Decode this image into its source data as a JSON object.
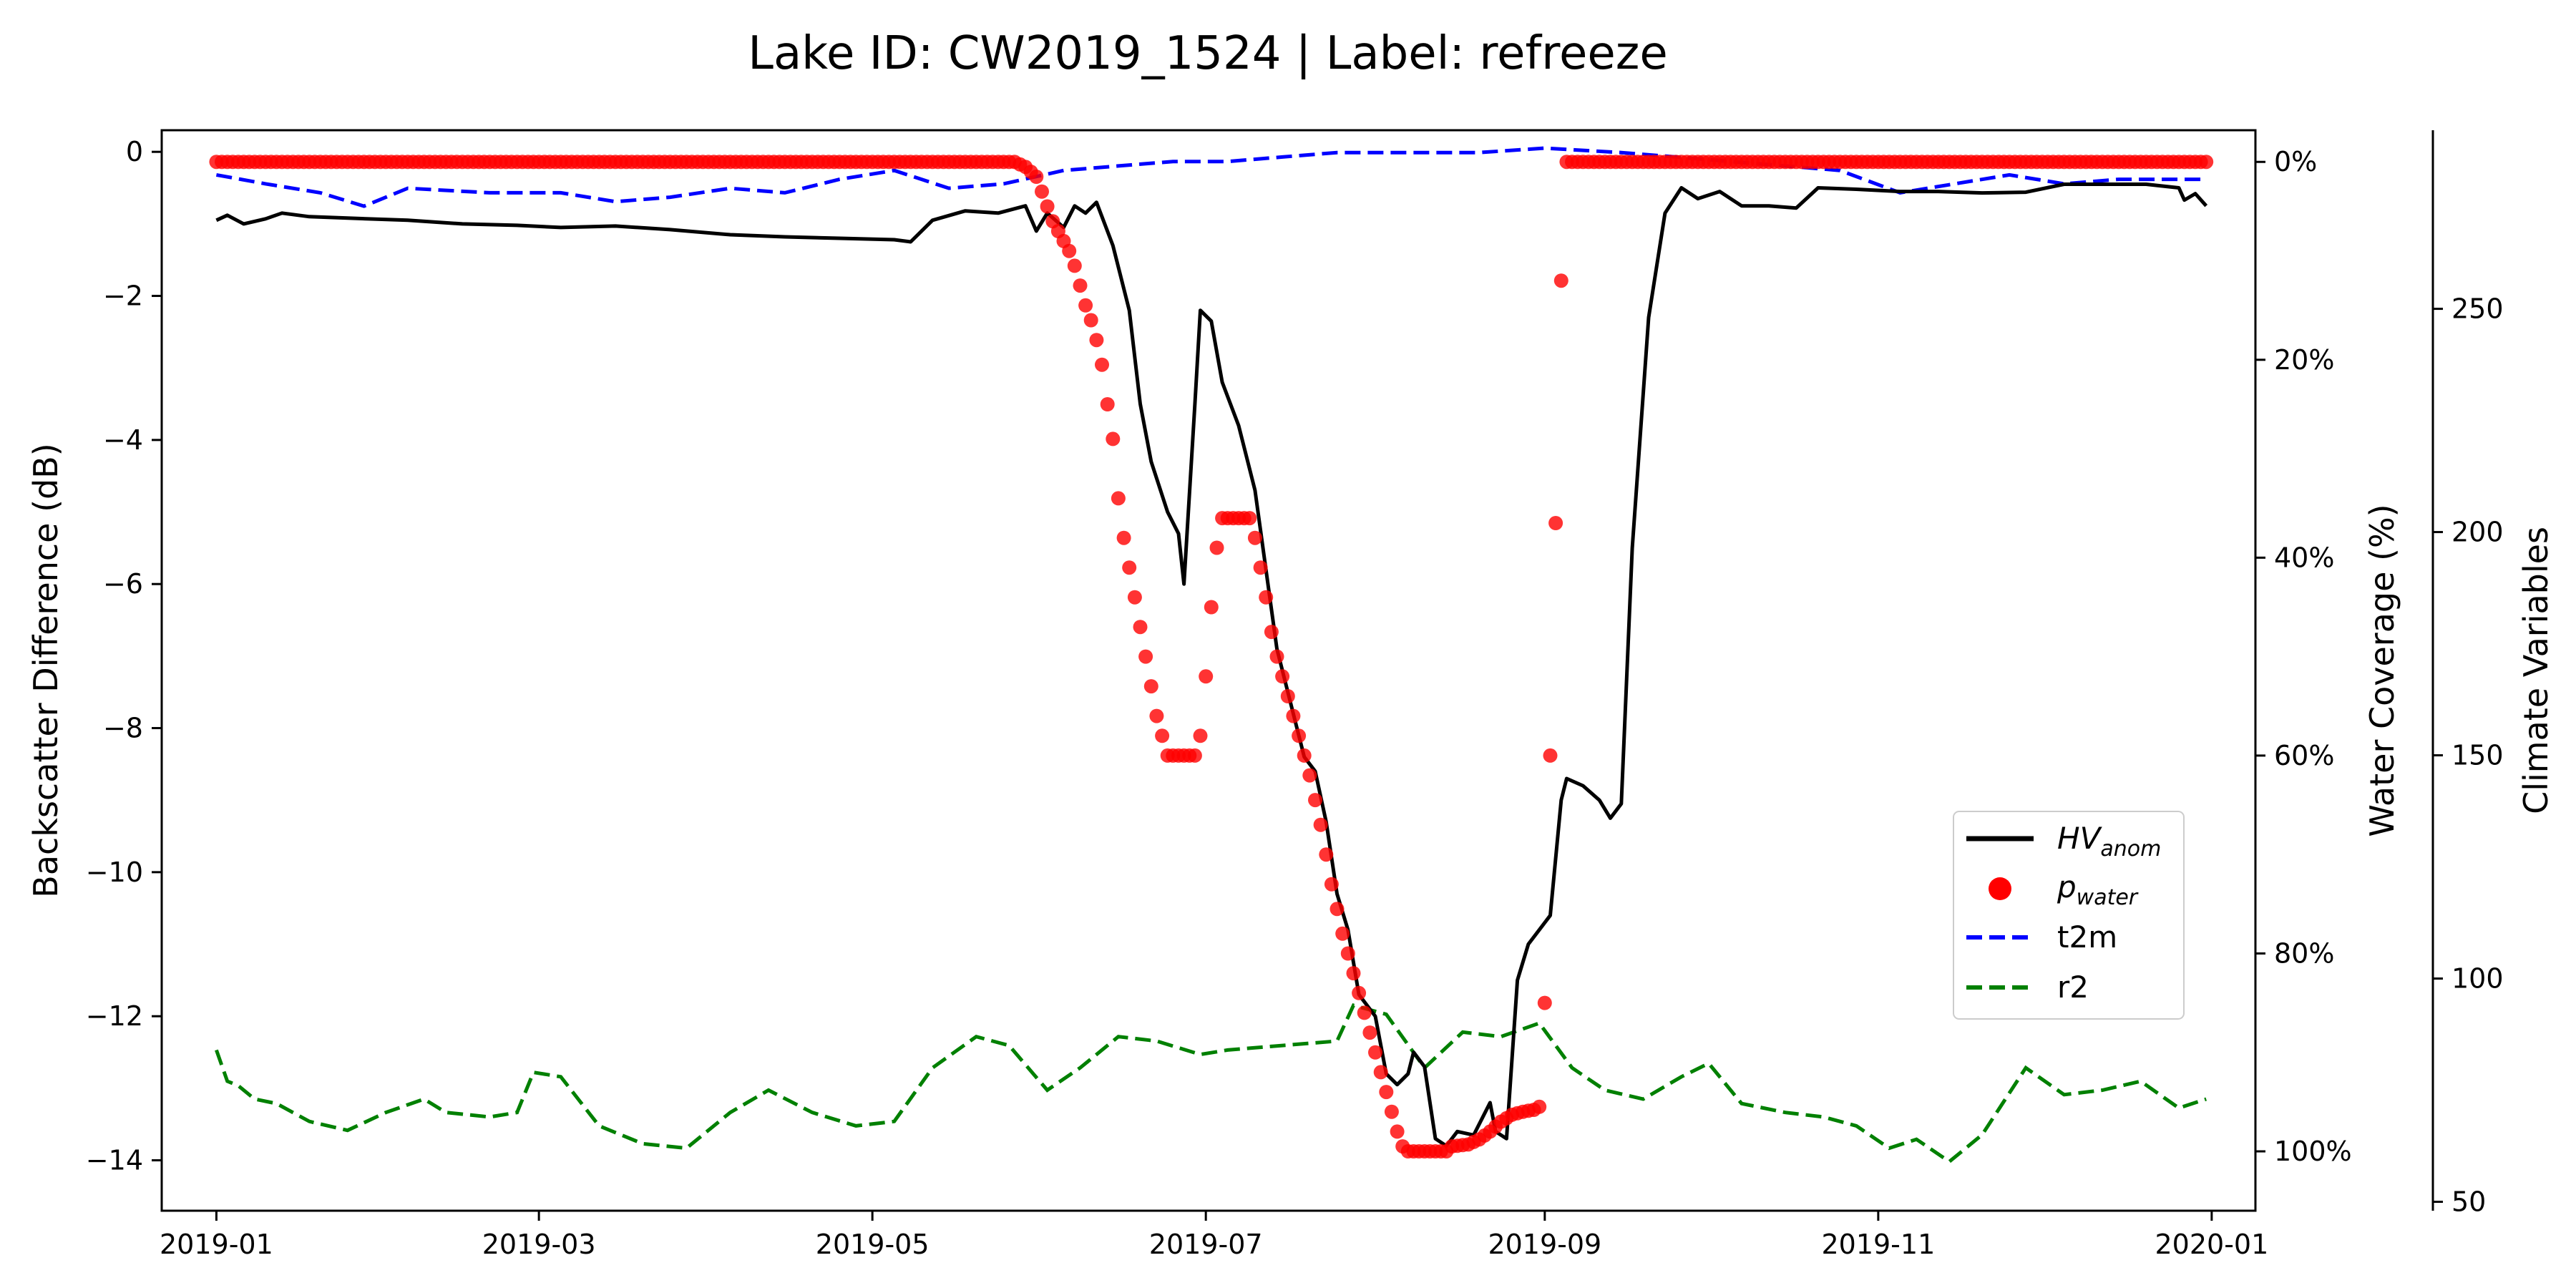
{
  "chart_data": {
    "type": "line",
    "title": "Lake ID: CW2019_1524 | Label: refreeze",
    "xlabel": "",
    "ylabel": "Backscatter Difference (dB)",
    "ylabel_right": "Water Coverage (%)",
    "ylabel_right2": "Climate Variables",
    "x_ticks": [
      "2019-01",
      "2019-03",
      "2019-05",
      "2019-07",
      "2019-09",
      "2019-11",
      "2020-01"
    ],
    "y_ticks": [
      "0",
      "−2",
      "−4",
      "−6",
      "−8",
      "−10",
      "−12",
      "−14"
    ],
    "y_right_ticks": [
      "0%",
      "20%",
      "40%",
      "60%",
      "80%",
      "100%"
    ],
    "y_right2_ticks": [
      "250",
      "200",
      "150",
      "100",
      "50"
    ],
    "xlim": [
      "2018-12-22",
      "2020-01-09"
    ],
    "ylim": [
      -14.7,
      0.3
    ],
    "y_right_lim": [
      -3.2,
      106
    ],
    "y_right2_lim": [
      48,
      290
    ],
    "legend_position": "center-right",
    "colors": {
      "hv_anom": "#000000",
      "p_water": "#ff0000",
      "t2m": "#0000ff",
      "r2": "#008000"
    },
    "legend": [
      {
        "label": "HV",
        "sub": "anom",
        "style": "solid-line",
        "color": "#000000"
      },
      {
        "label": "p",
        "sub": "water",
        "style": "dot",
        "color": "#ff0000"
      },
      {
        "label": "t2m",
        "sub": "",
        "style": "dashed",
        "color": "#0000ff"
      },
      {
        "label": "r2",
        "sub": "",
        "style": "dashed",
        "color": "#008000"
      }
    ],
    "series": [
      {
        "name": "HV_anom",
        "axis": "left",
        "points": [
          [
            "2019-01-01",
            -0.95
          ],
          [
            "2019-01-03",
            -0.88
          ],
          [
            "2019-01-06",
            -1.0
          ],
          [
            "2019-01-10",
            -0.93
          ],
          [
            "2019-01-13",
            -0.85
          ],
          [
            "2019-01-18",
            -0.9
          ],
          [
            "2019-01-25",
            -0.92
          ],
          [
            "2019-02-05",
            -0.95
          ],
          [
            "2019-02-15",
            -1.0
          ],
          [
            "2019-02-25",
            -1.02
          ],
          [
            "2019-03-05",
            -1.05
          ],
          [
            "2019-03-15",
            -1.03
          ],
          [
            "2019-03-25",
            -1.08
          ],
          [
            "2019-04-05",
            -1.15
          ],
          [
            "2019-04-15",
            -1.18
          ],
          [
            "2019-04-25",
            -1.2
          ],
          [
            "2019-05-05",
            -1.22
          ],
          [
            "2019-05-08",
            -1.25
          ],
          [
            "2019-05-12",
            -0.95
          ],
          [
            "2019-05-18",
            -0.82
          ],
          [
            "2019-05-24",
            -0.85
          ],
          [
            "2019-05-29",
            -0.75
          ],
          [
            "2019-05-31",
            -1.1
          ],
          [
            "2019-06-02",
            -0.85
          ],
          [
            "2019-06-05",
            -1.05
          ],
          [
            "2019-06-07",
            -0.75
          ],
          [
            "2019-06-09",
            -0.85
          ],
          [
            "2019-06-11",
            -0.7
          ],
          [
            "2019-06-14",
            -1.3
          ],
          [
            "2019-06-17",
            -2.2
          ],
          [
            "2019-06-19",
            -3.5
          ],
          [
            "2019-06-21",
            -4.3
          ],
          [
            "2019-06-24",
            -5.0
          ],
          [
            "2019-06-26",
            -5.3
          ],
          [
            "2019-06-27",
            -6.0
          ],
          [
            "2019-06-29",
            -3.5
          ],
          [
            "2019-06-30",
            -2.2
          ],
          [
            "2019-07-02",
            -2.35
          ],
          [
            "2019-07-04",
            -3.2
          ],
          [
            "2019-07-07",
            -3.8
          ],
          [
            "2019-07-10",
            -4.7
          ],
          [
            "2019-07-12",
            -5.8
          ],
          [
            "2019-07-14",
            -6.9
          ],
          [
            "2019-07-17",
            -7.8
          ],
          [
            "2019-07-19",
            -8.4
          ],
          [
            "2019-07-21",
            -8.6
          ],
          [
            "2019-07-23",
            -9.3
          ],
          [
            "2019-07-25",
            -10.3
          ],
          [
            "2019-07-27",
            -10.8
          ],
          [
            "2019-07-29",
            -11.7
          ],
          [
            "2019-08-01",
            -12.0
          ],
          [
            "2019-08-03",
            -12.8
          ],
          [
            "2019-08-05",
            -12.95
          ],
          [
            "2019-08-07",
            -12.8
          ],
          [
            "2019-08-08",
            -12.5
          ],
          [
            "2019-08-10",
            -12.7
          ],
          [
            "2019-08-12",
            -13.7
          ],
          [
            "2019-08-14",
            -13.8
          ],
          [
            "2019-08-16",
            -13.6
          ],
          [
            "2019-08-19",
            -13.65
          ],
          [
            "2019-08-22",
            -13.2
          ],
          [
            "2019-08-23",
            -13.6
          ],
          [
            "2019-08-25",
            -13.7
          ],
          [
            "2019-08-27",
            -11.5
          ],
          [
            "2019-08-29",
            -11.0
          ],
          [
            "2019-09-02",
            -10.6
          ],
          [
            "2019-09-04",
            -9.0
          ],
          [
            "2019-09-05",
            -8.7
          ],
          [
            "2019-09-08",
            -8.8
          ],
          [
            "2019-09-11",
            -9.0
          ],
          [
            "2019-09-13",
            -9.25
          ],
          [
            "2019-09-15",
            -9.05
          ],
          [
            "2019-09-17",
            -5.5
          ],
          [
            "2019-09-20",
            -2.3
          ],
          [
            "2019-09-23",
            -0.85
          ],
          [
            "2019-09-26",
            -0.5
          ],
          [
            "2019-09-29",
            -0.65
          ],
          [
            "2019-10-03",
            -0.55
          ],
          [
            "2019-10-07",
            -0.75
          ],
          [
            "2019-10-12",
            -0.75
          ],
          [
            "2019-10-17",
            -0.78
          ],
          [
            "2019-10-21",
            -0.5
          ],
          [
            "2019-10-28",
            -0.52
          ],
          [
            "2019-11-05",
            -0.55
          ],
          [
            "2019-11-12",
            -0.55
          ],
          [
            "2019-11-20",
            -0.57
          ],
          [
            "2019-11-28",
            -0.56
          ],
          [
            "2019-12-05",
            -0.45
          ],
          [
            "2019-12-12",
            -0.45
          ],
          [
            "2019-12-20",
            -0.45
          ],
          [
            "2019-12-26",
            -0.5
          ],
          [
            "2019-12-27",
            -0.67
          ],
          [
            "2019-12-29",
            -0.58
          ],
          [
            "2019-12-31",
            -0.75
          ]
        ]
      },
      {
        "name": "p_water",
        "axis": "right",
        "points": [
          [
            "2019-01-01",
            0
          ],
          [
            "2019-05-27",
            0
          ],
          [
            "2019-05-29",
            0.5
          ],
          [
            "2019-05-31",
            1.5
          ],
          [
            "2019-06-01",
            3
          ],
          [
            "2019-06-02",
            4.5
          ],
          [
            "2019-06-03",
            6
          ],
          [
            "2019-06-04",
            7
          ],
          [
            "2019-06-05",
            8
          ],
          [
            "2019-06-06",
            9
          ],
          [
            "2019-06-07",
            10.5
          ],
          [
            "2019-06-08",
            12.5
          ],
          [
            "2019-06-09",
            14.5
          ],
          [
            "2019-06-10",
            16
          ],
          [
            "2019-06-11",
            18
          ],
          [
            "2019-06-12",
            20.5
          ],
          [
            "2019-06-13",
            24.5
          ],
          [
            "2019-06-14",
            28
          ],
          [
            "2019-06-15",
            34
          ],
          [
            "2019-06-16",
            38
          ],
          [
            "2019-06-17",
            41
          ],
          [
            "2019-06-18",
            44
          ],
          [
            "2019-06-19",
            47
          ],
          [
            "2019-06-20",
            50
          ],
          [
            "2019-06-21",
            53
          ],
          [
            "2019-06-22",
            56
          ],
          [
            "2019-06-23",
            58
          ],
          [
            "2019-06-24",
            60
          ],
          [
            "2019-06-29",
            60
          ],
          [
            "2019-06-30",
            58
          ],
          [
            "2019-07-01",
            52
          ],
          [
            "2019-07-02",
            45
          ],
          [
            "2019-07-03",
            39
          ],
          [
            "2019-07-04",
            36
          ],
          [
            "2019-07-09",
            36
          ],
          [
            "2019-07-10",
            38
          ],
          [
            "2019-07-11",
            41
          ],
          [
            "2019-07-12",
            44
          ],
          [
            "2019-07-13",
            47.5
          ],
          [
            "2019-07-14",
            50
          ],
          [
            "2019-07-15",
            52
          ],
          [
            "2019-07-16",
            54
          ],
          [
            "2019-07-17",
            56
          ],
          [
            "2019-07-18",
            58
          ],
          [
            "2019-07-19",
            60
          ],
          [
            "2019-07-20",
            62
          ],
          [
            "2019-07-21",
            64.5
          ],
          [
            "2019-07-22",
            67
          ],
          [
            "2019-07-23",
            70
          ],
          [
            "2019-07-24",
            73
          ],
          [
            "2019-07-25",
            75.5
          ],
          [
            "2019-07-26",
            78
          ],
          [
            "2019-07-27",
            80
          ],
          [
            "2019-07-28",
            82
          ],
          [
            "2019-07-29",
            84
          ],
          [
            "2019-07-30",
            86
          ],
          [
            "2019-07-31",
            88
          ],
          [
            "2019-08-01",
            90
          ],
          [
            "2019-08-02",
            92
          ],
          [
            "2019-08-03",
            94
          ],
          [
            "2019-08-04",
            96
          ],
          [
            "2019-08-05",
            98
          ],
          [
            "2019-08-06",
            99.5
          ],
          [
            "2019-08-07",
            100
          ],
          [
            "2019-08-14",
            100
          ],
          [
            "2019-08-15",
            99.5
          ],
          [
            "2019-08-18",
            99.3
          ],
          [
            "2019-08-20",
            98.8
          ],
          [
            "2019-08-22",
            98
          ],
          [
            "2019-08-24",
            97
          ],
          [
            "2019-08-26",
            96.3
          ],
          [
            "2019-08-28",
            96
          ],
          [
            "2019-08-30",
            95.8
          ],
          [
            "2019-08-31",
            95.5
          ],
          [
            "2019-09-01",
            85
          ],
          [
            "2019-09-02",
            60
          ],
          [
            "2019-09-03",
            36.5
          ],
          [
            "2019-09-04",
            12
          ],
          [
            "2019-09-05",
            0
          ],
          [
            "2019-12-31",
            0
          ]
        ]
      },
      {
        "name": "t2m",
        "axis": "right2",
        "points": [
          [
            "2019-01-01",
            280
          ],
          [
            "2019-01-10",
            278
          ],
          [
            "2019-01-20",
            276
          ],
          [
            "2019-01-28",
            273
          ],
          [
            "2019-02-05",
            277
          ],
          [
            "2019-02-20",
            276
          ],
          [
            "2019-03-05",
            276
          ],
          [
            "2019-03-15",
            274
          ],
          [
            "2019-03-25",
            275
          ],
          [
            "2019-04-05",
            277
          ],
          [
            "2019-04-15",
            276
          ],
          [
            "2019-04-25",
            279
          ],
          [
            "2019-05-05",
            281
          ],
          [
            "2019-05-15",
            277
          ],
          [
            "2019-05-25",
            278
          ],
          [
            "2019-06-05",
            281
          ],
          [
            "2019-06-15",
            282
          ],
          [
            "2019-06-25",
            283
          ],
          [
            "2019-07-05",
            283
          ],
          [
            "2019-07-15",
            284
          ],
          [
            "2019-07-25",
            285
          ],
          [
            "2019-08-05",
            285
          ],
          [
            "2019-08-20",
            285
          ],
          [
            "2019-09-01",
            286
          ],
          [
            "2019-09-15",
            285
          ],
          [
            "2019-09-25",
            284
          ],
          [
            "2019-10-05",
            283
          ],
          [
            "2019-10-15",
            282
          ],
          [
            "2019-10-25",
            281
          ],
          [
            "2019-11-05",
            276
          ],
          [
            "2019-11-15",
            278
          ],
          [
            "2019-11-25",
            280
          ],
          [
            "2019-12-05",
            278
          ],
          [
            "2019-12-15",
            279
          ],
          [
            "2019-12-31",
            279
          ]
        ]
      },
      {
        "name": "r2",
        "axis": "right2",
        "points": [
          [
            "2019-01-01",
            84
          ],
          [
            "2019-01-03",
            77
          ],
          [
            "2019-01-05",
            76
          ],
          [
            "2019-01-08",
            73
          ],
          [
            "2019-01-12",
            72
          ],
          [
            "2019-01-18",
            68
          ],
          [
            "2019-01-25",
            66
          ],
          [
            "2019-02-01",
            70
          ],
          [
            "2019-02-08",
            73
          ],
          [
            "2019-02-12",
            70
          ],
          [
            "2019-02-20",
            69
          ],
          [
            "2019-02-25",
            70
          ],
          [
            "2019-02-28",
            79
          ],
          [
            "2019-03-05",
            78
          ],
          [
            "2019-03-12",
            67
          ],
          [
            "2019-03-20",
            63
          ],
          [
            "2019-03-28",
            62
          ],
          [
            "2019-04-05",
            70
          ],
          [
            "2019-04-12",
            75
          ],
          [
            "2019-04-20",
            70
          ],
          [
            "2019-04-28",
            67
          ],
          [
            "2019-05-05",
            68
          ],
          [
            "2019-05-12",
            80
          ],
          [
            "2019-05-20",
            87
          ],
          [
            "2019-05-26",
            85
          ],
          [
            "2019-06-02",
            75
          ],
          [
            "2019-06-08",
            80
          ],
          [
            "2019-06-15",
            87
          ],
          [
            "2019-06-22",
            86
          ],
          [
            "2019-06-30",
            83
          ],
          [
            "2019-07-05",
            84
          ],
          [
            "2019-07-15",
            85
          ],
          [
            "2019-07-25",
            86
          ],
          [
            "2019-07-28",
            94
          ],
          [
            "2019-08-03",
            92
          ],
          [
            "2019-08-10",
            80
          ],
          [
            "2019-08-17",
            88
          ],
          [
            "2019-08-24",
            87
          ],
          [
            "2019-08-31",
            90
          ],
          [
            "2019-09-06",
            80
          ],
          [
            "2019-09-12",
            75
          ],
          [
            "2019-09-19",
            73
          ],
          [
            "2019-09-26",
            78
          ],
          [
            "2019-10-01",
            81
          ],
          [
            "2019-10-07",
            72
          ],
          [
            "2019-10-15",
            70
          ],
          [
            "2019-10-22",
            69
          ],
          [
            "2019-10-28",
            67
          ],
          [
            "2019-11-03",
            62
          ],
          [
            "2019-11-08",
            64
          ],
          [
            "2019-11-14",
            59
          ],
          [
            "2019-11-20",
            65
          ],
          [
            "2019-11-28",
            80
          ],
          [
            "2019-12-05",
            74
          ],
          [
            "2019-12-12",
            75
          ],
          [
            "2019-12-19",
            77
          ],
          [
            "2019-12-26",
            71
          ],
          [
            "2019-12-31",
            73
          ]
        ]
      }
    ]
  }
}
